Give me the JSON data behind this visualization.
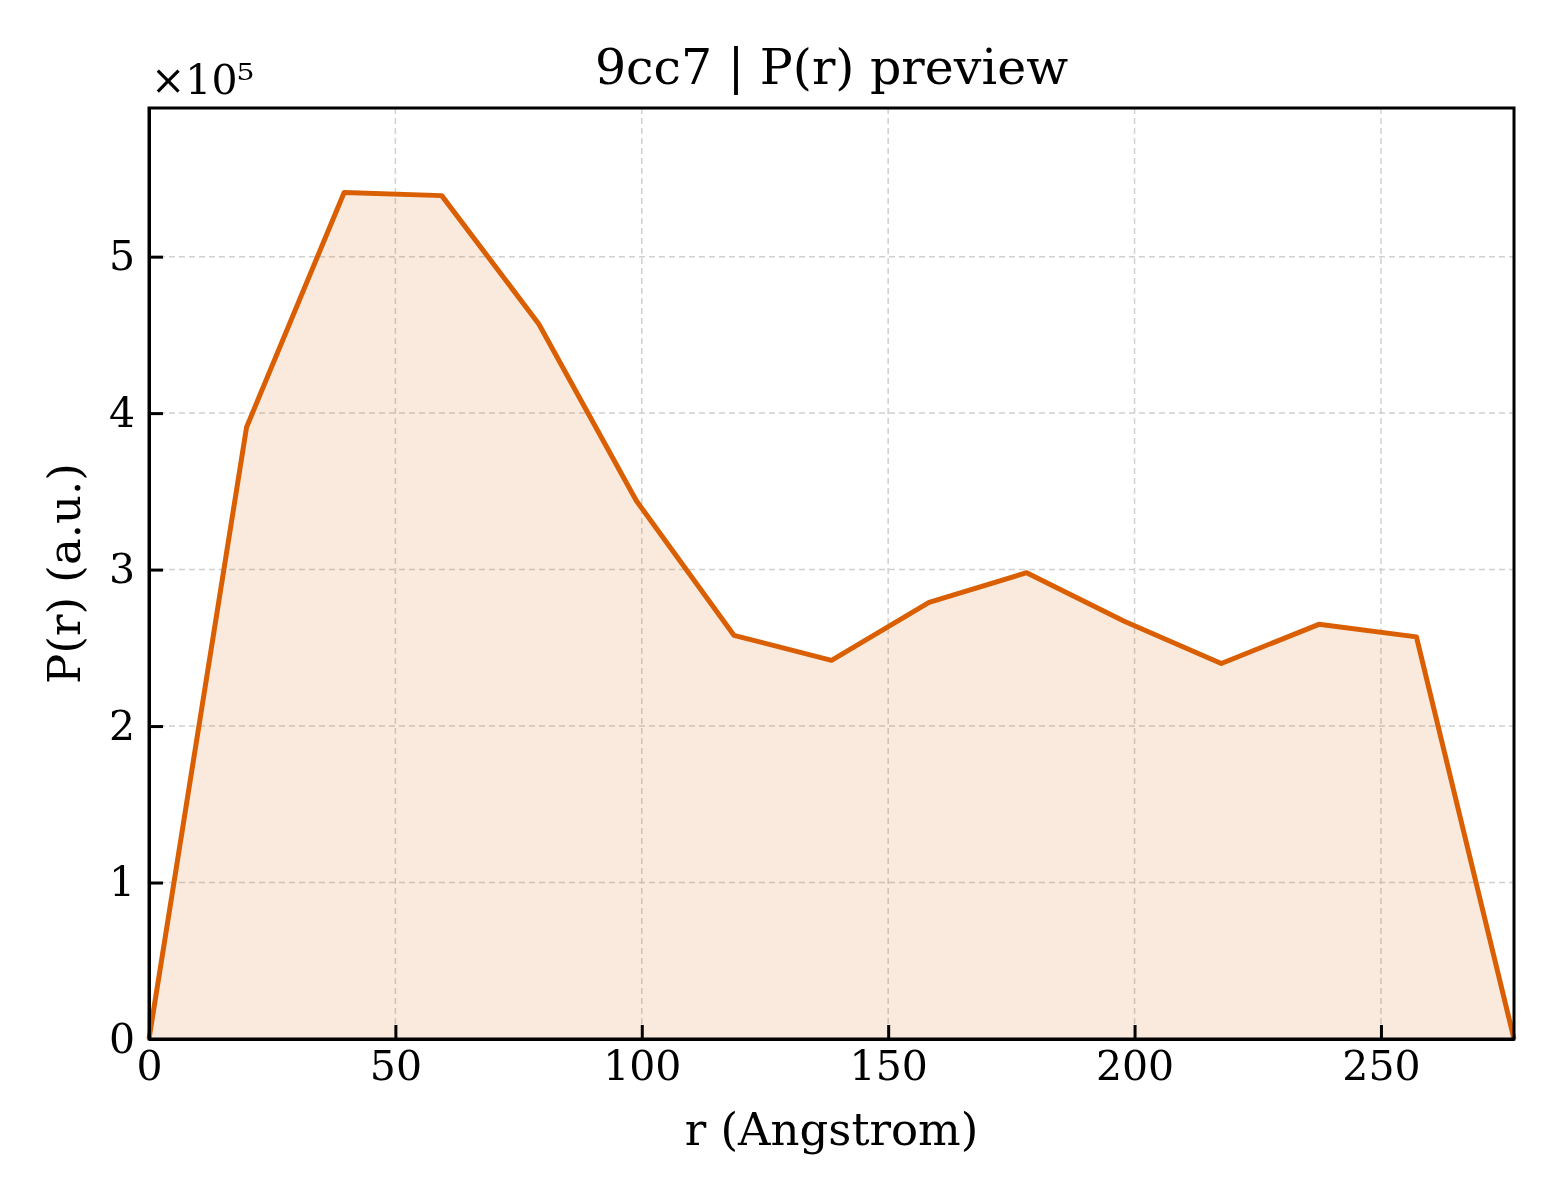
{
  "chart_data": {
    "type": "area",
    "title": "9cc7 | P(r) preview",
    "xlabel": "r (Angstrom)",
    "ylabel": "P(r) (a.u.)",
    "annotations": [
      "×10⁵"
    ],
    "x": [
      0,
      19.8,
      39.6,
      59.4,
      79.1,
      98.9,
      118.7,
      138.5,
      158.3,
      178.1,
      197.9,
      217.6,
      237.4,
      257.2,
      277
    ],
    "series": [
      {
        "color": "#d95f02",
        "values": [
          0,
          3.91,
          5.41,
          5.39,
          4.57,
          3.44,
          2.58,
          2.42,
          2.79,
          2.98,
          2.67,
          2.4,
          2.65,
          2.57,
          0
        ]
      }
    ],
    "xlim": [
      0,
      277
    ],
    "ylim": [
      0,
      5.95
    ],
    "xticks": [
      0,
      50,
      100,
      150,
      200,
      250
    ],
    "yticks": [
      0,
      1,
      2,
      3,
      4,
      5
    ],
    "grid": true
  }
}
